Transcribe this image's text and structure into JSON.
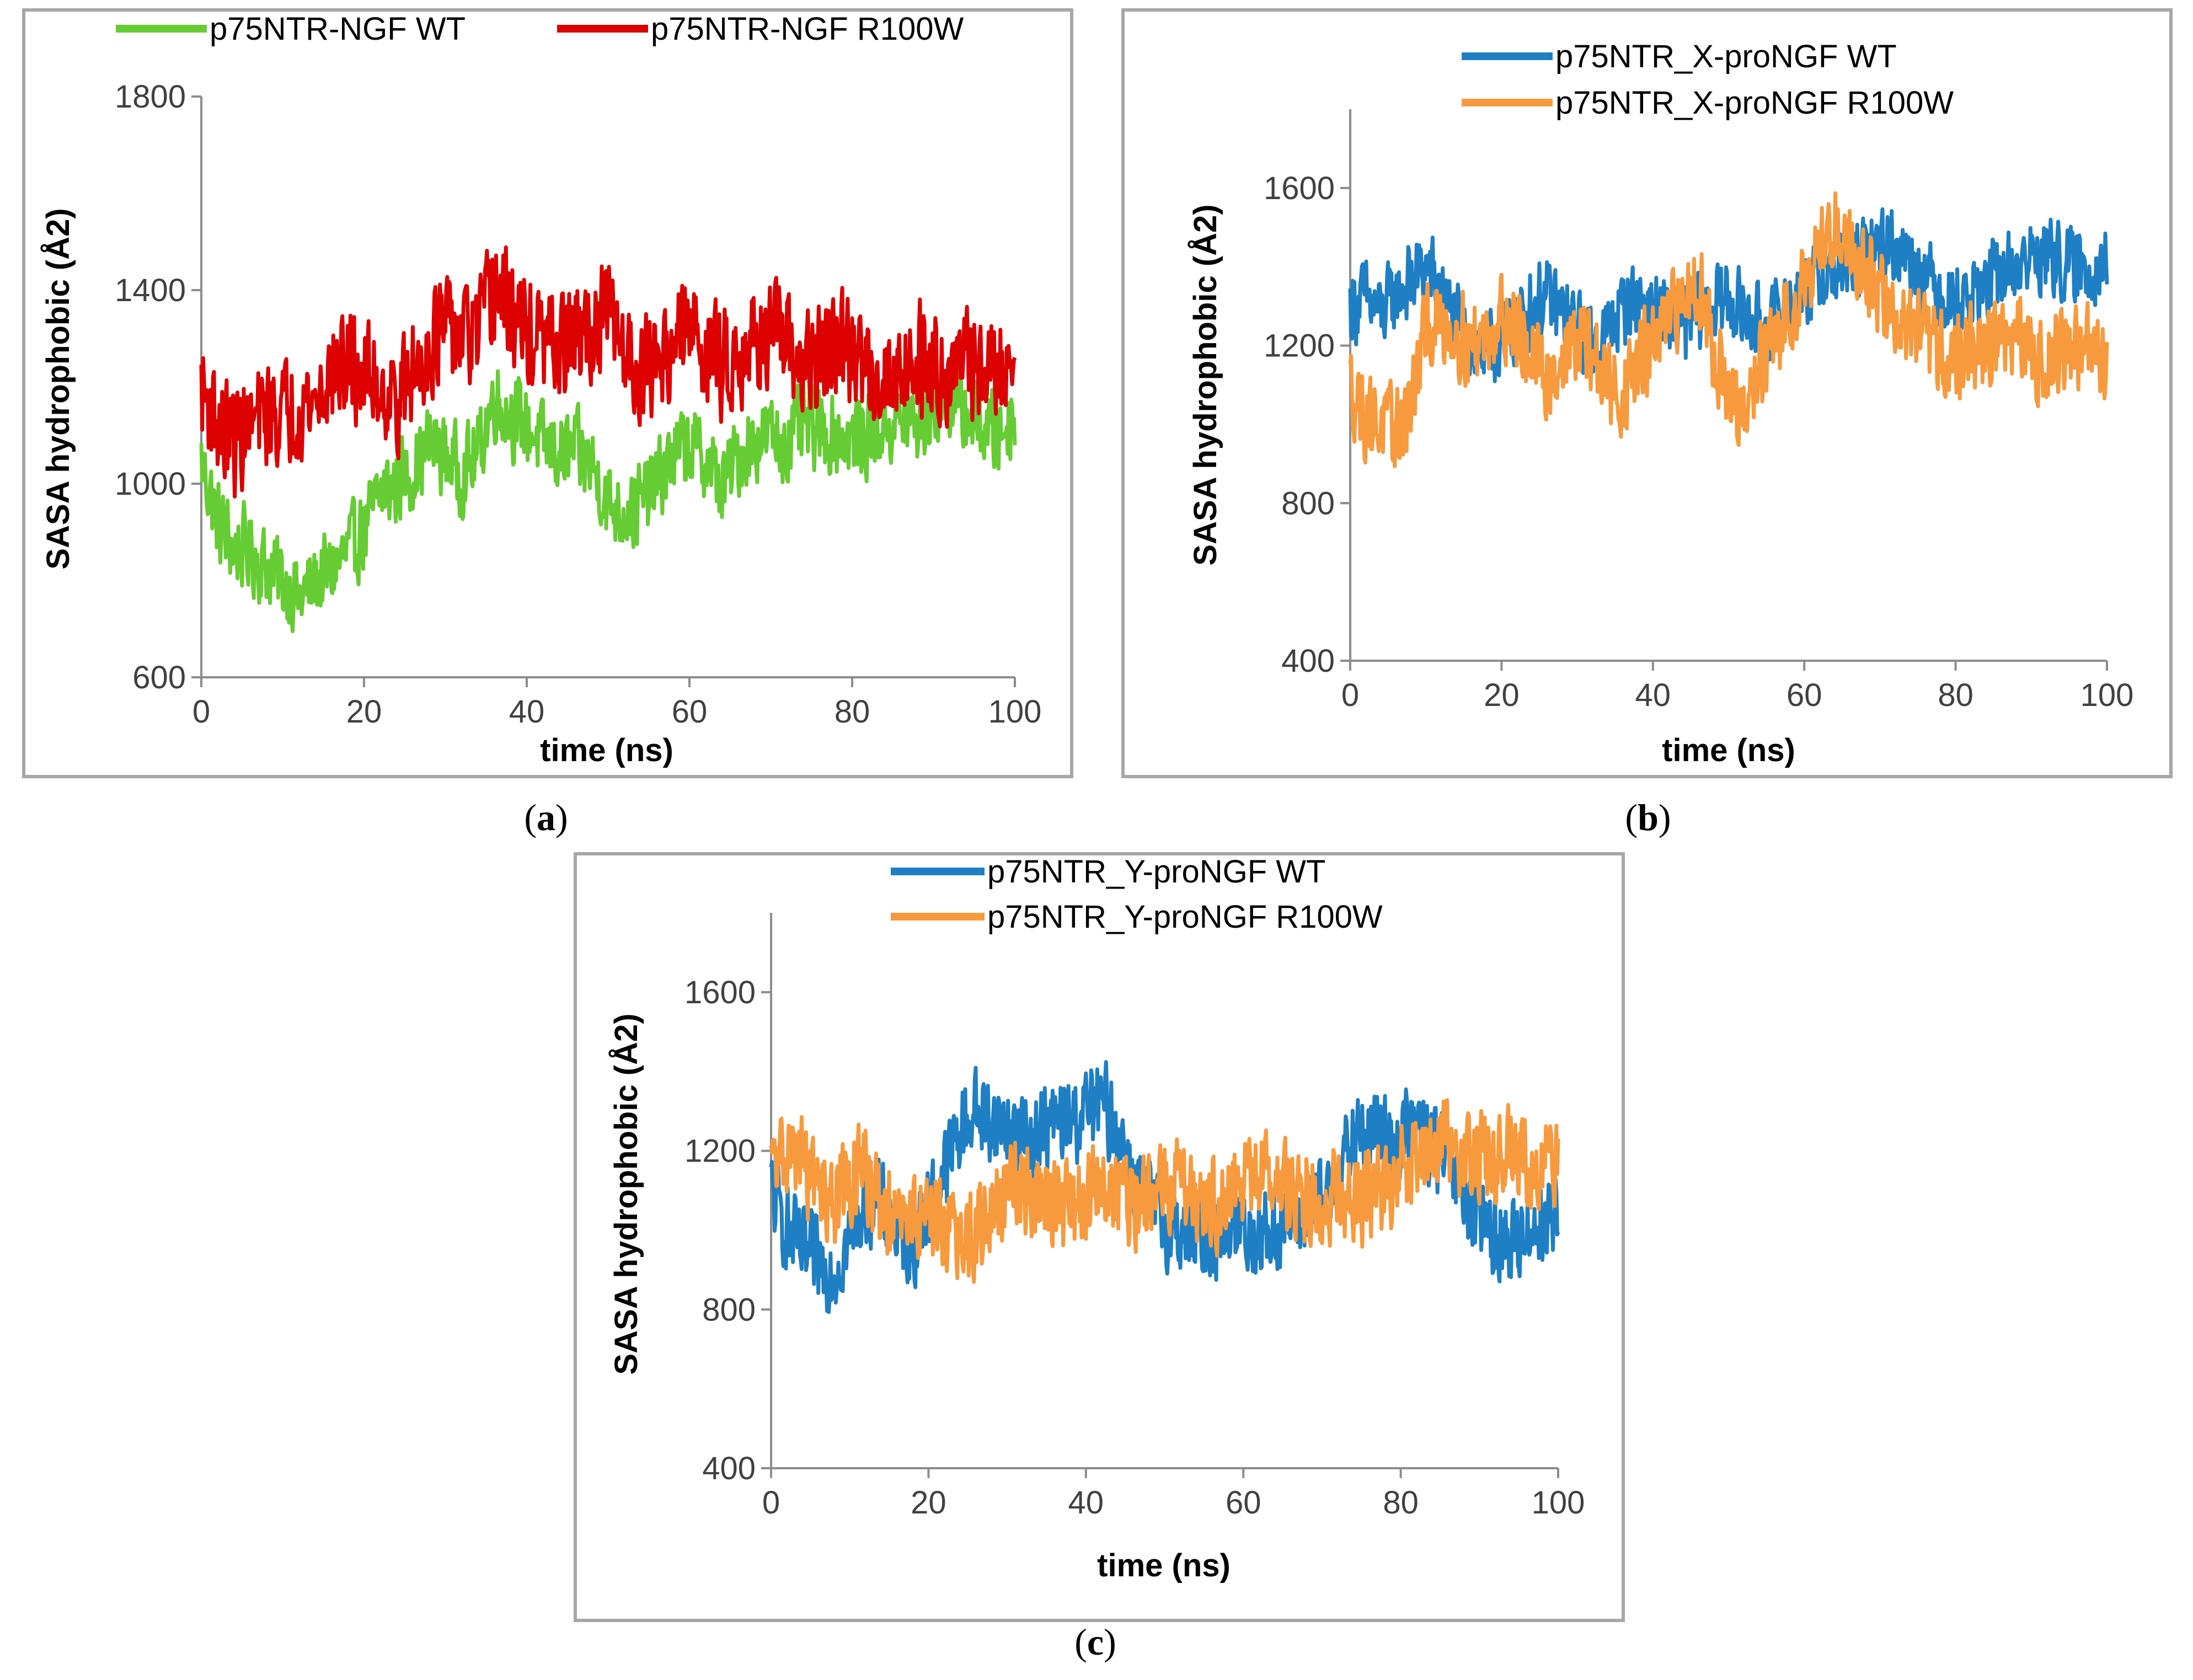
{
  "chart_data": [
    {
      "id": "a",
      "type": "line",
      "panel_label": "a",
      "xlabel": "time (ns)",
      "ylabel": "SASA hydrophobic (Å2)",
      "xlim": [
        0,
        100
      ],
      "ylim": [
        600,
        1800
      ],
      "xticks": [
        0,
        20,
        40,
        60,
        80,
        100
      ],
      "yticks": [
        600,
        1000,
        1400,
        1800
      ],
      "series": [
        {
          "name": "p75NTR-NGF WT",
          "color": "#66cc33",
          "x": [
            0,
            2,
            4,
            6,
            8,
            10,
            12,
            14,
            16,
            18,
            20,
            22,
            24,
            26,
            28,
            30,
            32,
            34,
            36,
            38,
            40,
            42,
            44,
            46,
            48,
            50,
            52,
            54,
            56,
            58,
            60,
            62,
            64,
            66,
            68,
            70,
            72,
            74,
            76,
            78,
            80,
            82,
            84,
            86,
            88,
            90,
            92,
            94,
            96,
            98,
            100
          ],
          "values": [
            1050,
            920,
            870,
            860,
            830,
            800,
            760,
            800,
            820,
            860,
            900,
            980,
            1000,
            1030,
            1080,
            1060,
            1020,
            1060,
            1180,
            1140,
            1120,
            1080,
            1060,
            1070,
            1040,
            960,
            940,
            960,
            1000,
            1060,
            1080,
            1050,
            990,
            1060,
            1090,
            1100,
            1080,
            1120,
            1110,
            1100,
            1090,
            1100,
            1120,
            1130,
            1120,
            1160,
            1180,
            1150,
            1120,
            1100,
            1150
          ],
          "amp": 70
        },
        {
          "name": "p75NTR-NGF R100W",
          "color": "#dd0000",
          "x": [
            0,
            2,
            4,
            6,
            8,
            10,
            12,
            14,
            16,
            18,
            20,
            22,
            24,
            26,
            28,
            30,
            32,
            34,
            36,
            38,
            40,
            42,
            44,
            46,
            48,
            50,
            52,
            54,
            56,
            58,
            60,
            62,
            64,
            66,
            68,
            70,
            72,
            74,
            76,
            78,
            80,
            82,
            84,
            86,
            88,
            90,
            92,
            94,
            96,
            98,
            100
          ],
          "values": [
            1200,
            1120,
            1090,
            1120,
            1140,
            1150,
            1160,
            1170,
            1230,
            1240,
            1230,
            1200,
            1170,
            1220,
            1290,
            1320,
            1300,
            1310,
            1400,
            1360,
            1310,
            1290,
            1280,
            1300,
            1310,
            1350,
            1280,
            1230,
            1260,
            1290,
            1320,
            1280,
            1250,
            1270,
            1300,
            1310,
            1280,
            1240,
            1260,
            1280,
            1270,
            1240,
            1220,
            1240,
            1260,
            1250,
            1230,
            1250,
            1240,
            1230,
            1240
          ],
          "amp": 90
        }
      ]
    },
    {
      "id": "b",
      "type": "line",
      "panel_label": "b",
      "xlabel": "time (ns)",
      "ylabel": "SASA hydrophobic (Å2)",
      "xlim": [
        0,
        100
      ],
      "ylim": [
        400,
        1800
      ],
      "xticks": [
        0,
        20,
        40,
        60,
        80,
        100
      ],
      "yticks": [
        400,
        800,
        1200,
        1600
      ],
      "series": [
        {
          "name": "p75NTR_X-proNGF WT",
          "color": "#1f7fc4",
          "x": [
            0,
            2,
            4,
            6,
            8,
            10,
            12,
            14,
            16,
            18,
            20,
            22,
            24,
            26,
            28,
            30,
            32,
            34,
            36,
            38,
            40,
            42,
            44,
            46,
            48,
            50,
            52,
            54,
            56,
            58,
            60,
            62,
            64,
            66,
            68,
            70,
            72,
            74,
            76,
            78,
            80,
            82,
            84,
            86,
            88,
            90,
            92,
            94,
            96,
            98,
            100
          ],
          "values": [
            1300,
            1320,
            1280,
            1330,
            1360,
            1400,
            1340,
            1250,
            1200,
            1180,
            1210,
            1260,
            1300,
            1320,
            1280,
            1240,
            1200,
            1230,
            1300,
            1320,
            1290,
            1260,
            1250,
            1280,
            1300,
            1320,
            1280,
            1250,
            1260,
            1300,
            1350,
            1370,
            1390,
            1410,
            1420,
            1460,
            1450,
            1430,
            1380,
            1340,
            1300,
            1330,
            1350,
            1380,
            1400,
            1420,
            1430,
            1410,
            1390,
            1400,
            1420
          ],
          "amp": 80
        },
        {
          "name": "p75NTR_X-proNGF R100W",
          "color": "#f79a3e",
          "x": [
            0,
            2,
            4,
            6,
            8,
            10,
            12,
            14,
            16,
            18,
            20,
            22,
            24,
            26,
            28,
            30,
            32,
            34,
            36,
            38,
            40,
            42,
            44,
            46,
            48,
            50,
            52,
            54,
            56,
            58,
            60,
            62,
            64,
            66,
            68,
            70,
            72,
            74,
            76,
            78,
            80,
            82,
            84,
            86,
            88,
            90,
            92,
            94,
            96,
            98,
            100
          ],
          "values": [
            1100,
            1020,
            1000,
            980,
            1050,
            1240,
            1260,
            1240,
            1200,
            1230,
            1280,
            1250,
            1160,
            1120,
            1160,
            1220,
            1180,
            1100,
            1080,
            1150,
            1200,
            1250,
            1320,
            1380,
            1200,
            1060,
            1000,
            1150,
            1200,
            1280,
            1380,
            1440,
            1500,
            1460,
            1400,
            1330,
            1260,
            1250,
            1220,
            1180,
            1170,
            1190,
            1200,
            1220,
            1210,
            1180,
            1160,
            1190,
            1200,
            1180,
            1170
          ],
          "amp": 90
        }
      ]
    },
    {
      "id": "c",
      "type": "line",
      "panel_label": "c",
      "xlabel": "time (ns)",
      "ylabel": "SASA hydrophobic (Å2)",
      "xlim": [
        0,
        100
      ],
      "ylim": [
        400,
        1800
      ],
      "xticks": [
        0,
        20,
        40,
        60,
        80,
        100
      ],
      "yticks": [
        400,
        800,
        1200,
        1600
      ],
      "series": [
        {
          "name": "p75NTR_Y-proNGF WT",
          "color": "#1f7fc4",
          "x": [
            0,
            2,
            4,
            6,
            8,
            10,
            12,
            14,
            16,
            18,
            20,
            22,
            24,
            26,
            28,
            30,
            32,
            34,
            36,
            38,
            40,
            42,
            44,
            46,
            48,
            50,
            52,
            54,
            56,
            58,
            60,
            62,
            64,
            66,
            68,
            70,
            72,
            74,
            76,
            78,
            80,
            82,
            84,
            86,
            88,
            90,
            92,
            94,
            96,
            98,
            100
          ],
          "values": [
            1100,
            1000,
            940,
            920,
            900,
            980,
            1080,
            1060,
            1000,
            960,
            1060,
            1150,
            1250,
            1300,
            1280,
            1260,
            1230,
            1250,
            1270,
            1280,
            1300,
            1320,
            1260,
            1140,
            1060,
            1020,
            1000,
            990,
            980,
            1010,
            1000,
            990,
            1000,
            1020,
            1040,
            1060,
            1150,
            1220,
            1250,
            1240,
            1230,
            1260,
            1220,
            1160,
            1080,
            1020,
            980,
            960,
            1000,
            1020,
            1050
          ],
          "amp": 90
        },
        {
          "name": "p75NTR_Y-proNGF R100W",
          "color": "#f79a3e",
          "x": [
            0,
            2,
            4,
            6,
            8,
            10,
            12,
            14,
            16,
            18,
            20,
            22,
            24,
            26,
            28,
            30,
            32,
            34,
            36,
            38,
            40,
            42,
            44,
            46,
            48,
            50,
            52,
            54,
            56,
            58,
            60,
            62,
            64,
            66,
            68,
            70,
            72,
            74,
            76,
            78,
            80,
            82,
            84,
            86,
            88,
            90,
            92,
            94,
            96,
            98,
            100
          ],
          "values": [
            1150,
            1200,
            1180,
            1100,
            1080,
            1120,
            1150,
            1050,
            1000,
            1030,
            1050,
            1030,
            950,
            990,
            1050,
            1080,
            1120,
            1100,
            1060,
            1050,
            1080,
            1120,
            1100,
            1060,
            1070,
            1100,
            1140,
            1100,
            1060,
            1080,
            1120,
            1140,
            1130,
            1100,
            1080,
            1060,
            1100,
            1090,
            1080,
            1100,
            1160,
            1200,
            1220,
            1210,
            1190,
            1180,
            1190,
            1200,
            1170,
            1160,
            1170
          ],
          "amp": 95
        }
      ]
    }
  ]
}
